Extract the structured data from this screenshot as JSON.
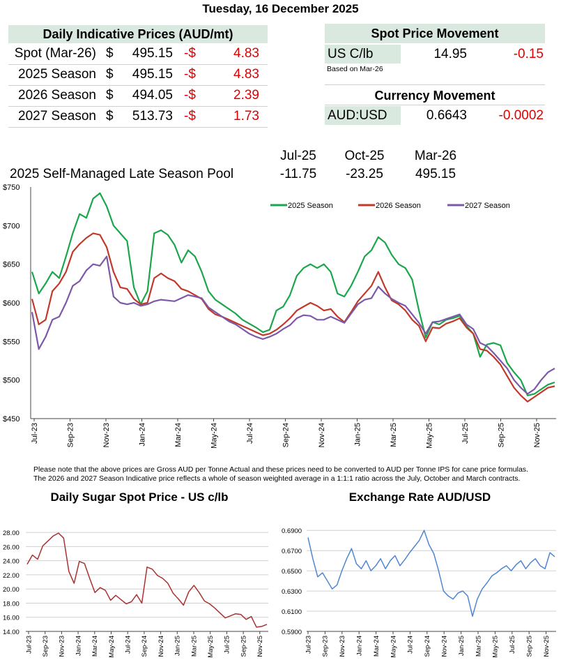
{
  "date": "Tuesday, 16 December 2025",
  "prices_table": {
    "title": "Daily Indicative Prices (AUD/mt)",
    "rows": [
      {
        "label": "Spot (Mar-26)",
        "cur": "$",
        "value": "495.15",
        "chg_prefix": "-$",
        "chg": "4.83"
      },
      {
        "label": "2025 Season",
        "cur": "$",
        "value": "495.15",
        "chg_prefix": "-$",
        "chg": "4.83"
      },
      {
        "label": "2026 Season",
        "cur": "$",
        "value": "494.05",
        "chg_prefix": "-$",
        "chg": "2.39"
      },
      {
        "label": "2027 Season",
        "cur": "$",
        "value": "513.73",
        "chg_prefix": "-$",
        "chg": "1.73"
      }
    ]
  },
  "spot_movement": {
    "title": "Spot Price Movement",
    "label": "US C/lb",
    "value": "14.95",
    "change": "-0.15",
    "note": "Based on Mar-26"
  },
  "currency_movement": {
    "title": "Currency Movement",
    "label": "AUD:USD",
    "value": "0.6643",
    "change": "-0.0002"
  },
  "pool": {
    "label": "2025 Self-Managed Late Season Pool",
    "columns": [
      "Jul-25",
      "Oct-25",
      "Mar-26"
    ],
    "values": [
      "-11.75",
      "-23.25",
      "495.15"
    ]
  },
  "notes": [
    "Please note that the above prices are Gross AUD per Tonne Actual and these prices need to be converted to AUD per Tonne IPS for cane price formulas.",
    "The 2026 and 2027 Season Indicative price reflects a whole of season weighted average in a 1:1:1 ratio across the July, October and March contracts."
  ],
  "colors": {
    "s2025": "#1aa64a",
    "s2026": "#c0392b",
    "s2027": "#7b59a8",
    "sugar": "#a83232",
    "fx": "#4f86d0",
    "header_bg": "#d9e9e0",
    "negative": "#e00000"
  },
  "chart_data": [
    {
      "type": "line",
      "ylim": [
        450,
        750
      ],
      "yticks": [
        "$450",
        "$500",
        "$550",
        "$600",
        "$650",
        "$700",
        "$750"
      ],
      "xticks": [
        "Jul-23",
        "Sep-23",
        "Nov-23",
        "Jan-24",
        "Mar-24",
        "May-24",
        "Jul-24",
        "Sep-24",
        "Nov-24",
        "Jan-25",
        "Mar-25",
        "May-25",
        "Jul-25",
        "Sep-25",
        "Nov-25"
      ],
      "legend_position": "top",
      "series": [
        {
          "name": "2025 Season",
          "values": [
            640,
            612,
            625,
            640,
            632,
            660,
            690,
            715,
            710,
            735,
            742,
            725,
            700,
            690,
            680,
            620,
            598,
            615,
            690,
            694,
            688,
            675,
            652,
            668,
            660,
            640,
            615,
            604,
            598,
            592,
            586,
            578,
            573,
            568,
            562,
            565,
            590,
            595,
            610,
            635,
            645,
            650,
            645,
            650,
            640,
            612,
            608,
            622,
            640,
            660,
            668,
            685,
            678,
            662,
            650,
            645,
            630,
            590,
            555,
            575,
            572,
            578,
            580,
            583,
            570,
            560,
            530,
            546,
            548,
            545,
            522,
            510,
            500,
            480,
            482,
            488,
            494,
            497
          ]
        },
        {
          "name": "2026 Season",
          "values": [
            605,
            572,
            578,
            615,
            625,
            640,
            666,
            676,
            684,
            690,
            688,
            672,
            640,
            620,
            618,
            605,
            598,
            600,
            632,
            638,
            632,
            628,
            618,
            615,
            610,
            605,
            592,
            585,
            582,
            578,
            574,
            570,
            566,
            562,
            558,
            560,
            565,
            572,
            580,
            590,
            595,
            600,
            596,
            590,
            592,
            582,
            575,
            588,
            602,
            612,
            622,
            640,
            620,
            603,
            598,
            590,
            578,
            570,
            550,
            568,
            567,
            573,
            576,
            580,
            568,
            560,
            540,
            538,
            530,
            520,
            505,
            490,
            480,
            472,
            478,
            484,
            490,
            492
          ]
        },
        {
          "name": "2027 Season",
          "values": [
            588,
            540,
            556,
            578,
            582,
            600,
            622,
            628,
            642,
            650,
            648,
            660,
            608,
            600,
            598,
            600,
            596,
            598,
            602,
            604,
            603,
            602,
            606,
            610,
            608,
            606,
            594,
            588,
            582,
            576,
            572,
            566,
            560,
            556,
            553,
            556,
            560,
            566,
            571,
            580,
            584,
            583,
            578,
            578,
            582,
            578,
            574,
            586,
            598,
            604,
            606,
            621,
            612,
            605,
            600,
            596,
            585,
            574,
            560,
            575,
            576,
            579,
            582,
            585,
            572,
            566,
            548,
            544,
            535,
            525,
            515,
            500,
            490,
            482,
            488,
            500,
            510,
            515
          ]
        }
      ]
    },
    {
      "type": "line",
      "title": "Daily Sugar Spot Price - US c/lb",
      "ylim": [
        14,
        29
      ],
      "yticks": [
        "14.00",
        "16.00",
        "18.00",
        "20.00",
        "22.00",
        "24.00",
        "26.00",
        "28.00"
      ],
      "xticks": [
        "Jul-23",
        "Sep-23",
        "Nov-23",
        "Jan-24",
        "Mar-24",
        "May-24",
        "Jul-24",
        "Sep-24",
        "Nov-24",
        "Jan-25",
        "Mar-25",
        "May-25",
        "Jul-25",
        "Sep-25",
        "Nov-25"
      ],
      "series": [
        {
          "values": [
            23.5,
            24.8,
            24.2,
            26.1,
            26.8,
            27.5,
            27.9,
            27.2,
            22.5,
            20.8,
            23.9,
            23.6,
            21.5,
            19.5,
            20.2,
            19.8,
            18.4,
            19.1,
            18.5,
            17.9,
            18.2,
            19.2,
            18.0,
            23.1,
            22.8,
            21.9,
            21.5,
            20.8,
            19.4,
            18.6,
            17.7,
            19.6,
            20.5,
            19.5,
            18.3,
            17.9,
            17.3,
            16.6,
            15.9,
            16.2,
            16.5,
            16.4,
            15.7,
            16.1,
            14.6,
            14.7,
            15.0
          ]
        }
      ]
    },
    {
      "type": "line",
      "title": "Exchange Rate AUD/USD",
      "ylim": [
        0.59,
        0.695
      ],
      "yticks": [
        "0.5900",
        "0.6100",
        "0.6300",
        "0.6500",
        "0.6700",
        "0.6900"
      ],
      "xticks": [
        "Jul-23",
        "Sep-23",
        "Nov-23",
        "Jan-24",
        "Mar-24",
        "May-24",
        "Jul-24",
        "Sep-24",
        "Nov-24",
        "Jan-25",
        "Mar-25",
        "May-25",
        "Jul-25",
        "Sep-25",
        "Nov-25"
      ],
      "series": [
        {
          "values": [
            0.683,
            0.662,
            0.644,
            0.648,
            0.64,
            0.632,
            0.636,
            0.65,
            0.662,
            0.672,
            0.657,
            0.652,
            0.66,
            0.65,
            0.655,
            0.662,
            0.652,
            0.66,
            0.665,
            0.655,
            0.661,
            0.668,
            0.674,
            0.68,
            0.69,
            0.676,
            0.667,
            0.65,
            0.63,
            0.625,
            0.622,
            0.628,
            0.63,
            0.625,
            0.605,
            0.622,
            0.632,
            0.638,
            0.645,
            0.648,
            0.652,
            0.655,
            0.65,
            0.656,
            0.66,
            0.652,
            0.658,
            0.662,
            0.655,
            0.652,
            0.668,
            0.664
          ]
        }
      ]
    }
  ]
}
